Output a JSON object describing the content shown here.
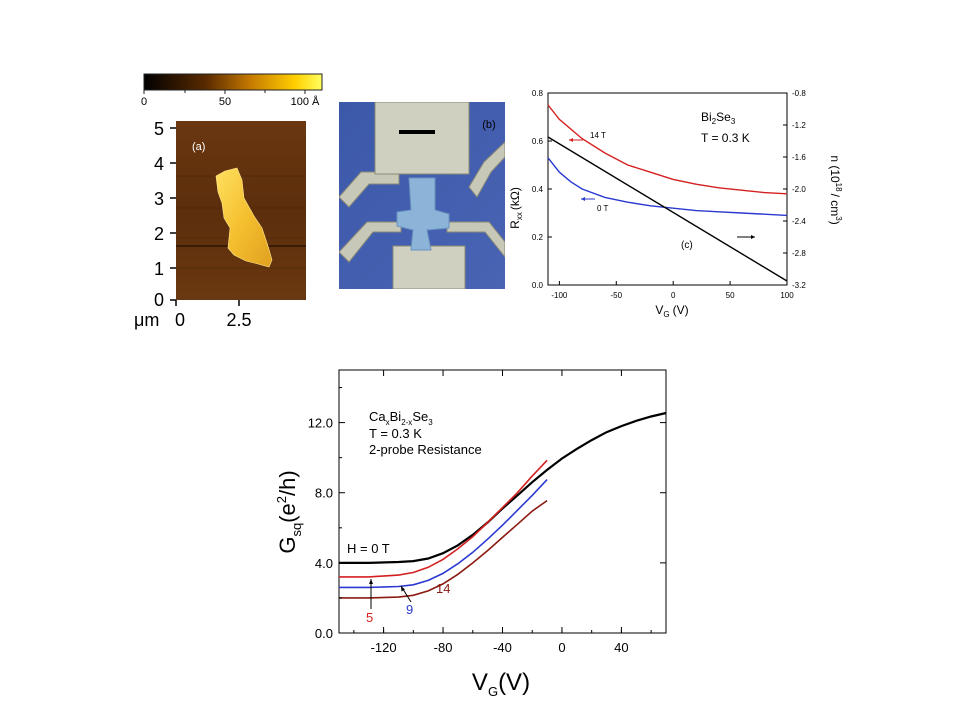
{
  "panel_a": {
    "label": "(a)",
    "colorbar_ticks": [
      "0",
      "50",
      "100 Å"
    ],
    "y_ticks": [
      "5",
      "4",
      "3",
      "2",
      "1",
      "0"
    ],
    "x_ticks": [
      "0",
      "2.5"
    ],
    "x_unit": "μm"
  },
  "panel_b": {
    "label": "(b)"
  },
  "chart_data": [
    {
      "id": "panel_c",
      "type": "line",
      "label": "(c)",
      "xlabel": "V",
      "xlabel_sub": "G",
      "xlabel_unit": "(V)",
      "ylabel_left": "R",
      "ylabel_left_sub": "xx",
      "ylabel_left_unit": "(kΩ)",
      "ylabel_right": "n (10",
      "ylabel_right_sup": "18",
      "ylabel_right_unit": "/ cm",
      "ylabel_right_unit_sup": "3",
      "ylabel_right_close": ")",
      "annotation_material": "Bi",
      "annotation_material_sub1": "2",
      "annotation_material_mid": "Se",
      "annotation_material_sub2": "3",
      "annotation_temp": "T = 0.3 K",
      "xlim": [
        -110,
        100
      ],
      "ylim_left": [
        0.0,
        0.8
      ],
      "ylim_right": [
        -3.2,
        -0.8
      ],
      "x_ticks": [
        "-100",
        "-50",
        "0",
        "50",
        "100"
      ],
      "y_ticks_left": [
        "0.0",
        "0.2",
        "0.4",
        "0.6",
        "0.8"
      ],
      "y_ticks_right": [
        "-0.8",
        "-1.2",
        "-1.6",
        "-2.0",
        "-2.4",
        "-2.8",
        "-3.2"
      ],
      "series": [
        {
          "name": "14 T",
          "color": "#d42020",
          "axis": "left",
          "x": [
            -110,
            -100,
            -80,
            -60,
            -40,
            -20,
            0,
            20,
            40,
            60,
            80,
            100
          ],
          "y": [
            0.75,
            0.69,
            0.61,
            0.55,
            0.5,
            0.47,
            0.44,
            0.42,
            0.405,
            0.395,
            0.385,
            0.38
          ]
        },
        {
          "name": "0 T",
          "color": "#2a3ad0",
          "axis": "left",
          "x": [
            -110,
            -100,
            -90,
            -80,
            -60,
            -40,
            -20,
            0,
            20,
            40,
            60,
            80,
            100
          ],
          "y": [
            0.53,
            0.47,
            0.43,
            0.4,
            0.365,
            0.345,
            0.33,
            0.32,
            0.31,
            0.305,
            0.3,
            0.295,
            0.29
          ]
        },
        {
          "name": "",
          "color": "#000000",
          "axis": "right",
          "x": [
            -110,
            100
          ],
          "y": [
            -1.35,
            -3.15
          ]
        }
      ]
    },
    {
      "id": "panel_main",
      "type": "line",
      "xlabel": "V",
      "xlabel_sub": "G",
      "xlabel_unit": "(V)",
      "ylabel": "G",
      "ylabel_sub": "sq",
      "ylabel_unit": "(e",
      "ylabel_unit_sup": "2",
      "ylabel_unit_close": "/h)",
      "annotation_material_parts": [
        "Ca",
        "x",
        "Bi",
        "2-x",
        "Se",
        "3"
      ],
      "annotation_temp": "T = 0.3 K",
      "annotation_note": "2-probe Resistance",
      "xlim": [
        -150,
        70
      ],
      "ylim": [
        0.0,
        15.0
      ],
      "x_ticks": [
        "-120",
        "-80",
        "-40",
        "0",
        "40"
      ],
      "y_ticks": [
        "0.0",
        "4.0",
        "8.0",
        "12.0"
      ],
      "series": [
        {
          "name": "H = 0 T",
          "color": "#000000",
          "x": [
            -150,
            -130,
            -110,
            -100,
            -90,
            -80,
            -70,
            -60,
            -50,
            -40,
            -30,
            -20,
            -10,
            0,
            10,
            20,
            30,
            40,
            50,
            60,
            70
          ],
          "y": [
            4.0,
            4.0,
            4.05,
            4.1,
            4.25,
            4.55,
            5.0,
            5.6,
            6.3,
            7.1,
            7.85,
            8.6,
            9.3,
            9.95,
            10.5,
            11.0,
            11.45,
            11.8,
            12.1,
            12.35,
            12.55
          ]
        },
        {
          "name": "5",
          "color": "#d42020",
          "x": [
            -150,
            -130,
            -110,
            -100,
            -90,
            -80,
            -70,
            -60,
            -50,
            -40,
            -30,
            -20,
            -10
          ],
          "y": [
            3.2,
            3.2,
            3.3,
            3.45,
            3.75,
            4.2,
            4.8,
            5.5,
            6.3,
            7.15,
            8.0,
            8.95,
            9.85
          ]
        },
        {
          "name": "9",
          "color": "#2a3ad0",
          "x": [
            -150,
            -130,
            -110,
            -100,
            -90,
            -80,
            -70,
            -60,
            -50,
            -40,
            -30,
            -20,
            -10
          ],
          "y": [
            2.6,
            2.6,
            2.65,
            2.75,
            3.0,
            3.4,
            3.95,
            4.6,
            5.35,
            6.15,
            7.0,
            7.85,
            8.75
          ]
        },
        {
          "name": "14",
          "color": "#8b1a10",
          "x": [
            -150,
            -130,
            -110,
            -100,
            -90,
            -80,
            -70,
            -60,
            -50,
            -40,
            -30,
            -20,
            -10
          ],
          "y": [
            2.0,
            2.0,
            2.05,
            2.15,
            2.4,
            2.8,
            3.35,
            4.0,
            4.7,
            5.45,
            6.2,
            6.95,
            7.55
          ]
        }
      ]
    }
  ]
}
